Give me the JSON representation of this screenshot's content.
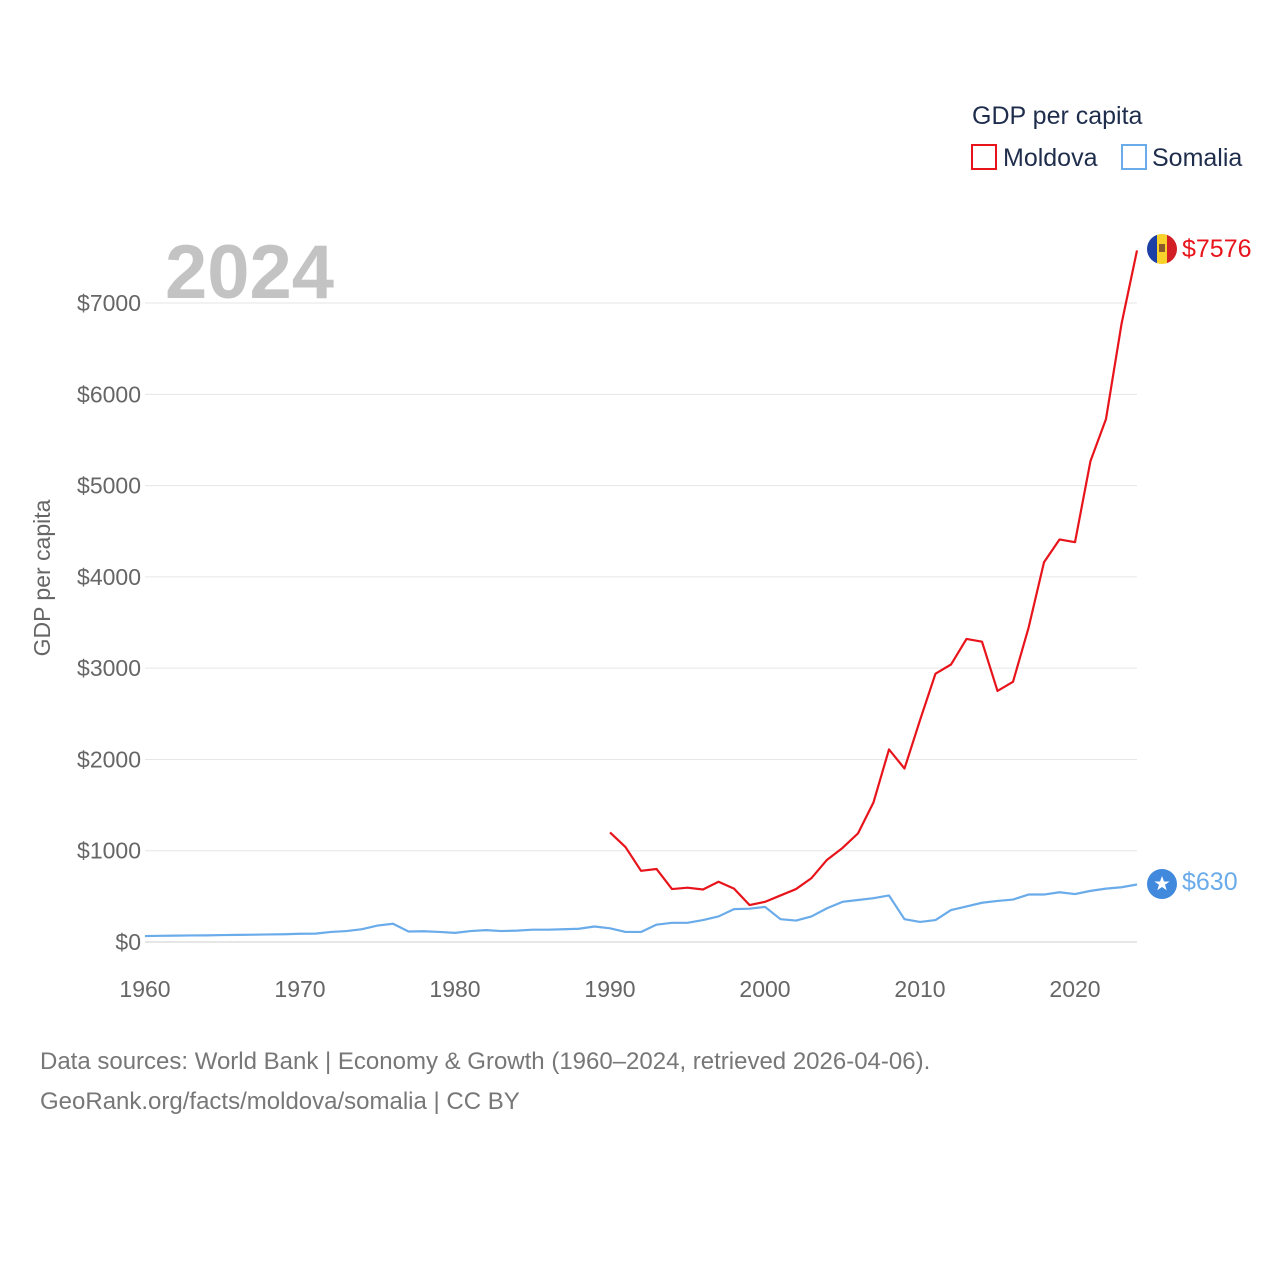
{
  "colors": {
    "moldova": "#e8141b",
    "somalia": "#6aabea",
    "flag_blue": "#1c3fa5",
    "flag_yellow": "#f8d22b",
    "flag_red": "#d21f26",
    "somalia_flag": "#4189dd"
  },
  "icons": {
    "moldova_flag": "moldova-flag-icon",
    "somalia_flag": "somalia-flag-icon"
  },
  "chart_data": {
    "type": "line",
    "title": "2024",
    "legend_title": "GDP per capita",
    "ylabel": "GDP per capita",
    "xlabel": "",
    "xlim": [
      1960,
      2024
    ],
    "ylim": [
      0,
      7700
    ],
    "x_ticks": [
      1960,
      1970,
      1980,
      1990,
      2000,
      2010,
      2020
    ],
    "x_tick_labels": [
      "1960",
      "1970",
      "1980",
      "1990",
      "2000",
      "2010",
      "2020"
    ],
    "y_ticks": [
      0,
      1000,
      2000,
      3000,
      4000,
      5000,
      6000,
      7000
    ],
    "y_tick_labels": [
      "$0",
      "$1000",
      "$2000",
      "$3000",
      "$4000",
      "$5000",
      "$6000",
      "$7000"
    ],
    "grid": true,
    "legend_position": "top-right",
    "series": [
      {
        "name": "Moldova",
        "color": "#e8141b",
        "end_label": "$7576",
        "points": [
          [
            1990,
            1200
          ],
          [
            1991,
            1040
          ],
          [
            1992,
            780
          ],
          [
            1993,
            800
          ],
          [
            1994,
            580
          ],
          [
            1995,
            595
          ],
          [
            1996,
            575
          ],
          [
            1997,
            660
          ],
          [
            1998,
            585
          ],
          [
            1999,
            405
          ],
          [
            2000,
            440
          ],
          [
            2001,
            510
          ],
          [
            2002,
            580
          ],
          [
            2003,
            700
          ],
          [
            2004,
            900
          ],
          [
            2005,
            1030
          ],
          [
            2006,
            1190
          ],
          [
            2007,
            1530
          ],
          [
            2008,
            2110
          ],
          [
            2009,
            1900
          ],
          [
            2010,
            2430
          ],
          [
            2011,
            2940
          ],
          [
            2012,
            3040
          ],
          [
            2013,
            3320
          ],
          [
            2014,
            3290
          ],
          [
            2015,
            2750
          ],
          [
            2016,
            2850
          ],
          [
            2017,
            3440
          ],
          [
            2018,
            4160
          ],
          [
            2019,
            4410
          ],
          [
            2020,
            4380
          ],
          [
            2021,
            5270
          ],
          [
            2022,
            5730
          ],
          [
            2023,
            6770
          ],
          [
            2024,
            7576
          ]
        ]
      },
      {
        "name": "Somalia",
        "color": "#6aabea",
        "end_label": "$630",
        "points": [
          [
            1960,
            65
          ],
          [
            1961,
            68
          ],
          [
            1962,
            70
          ],
          [
            1963,
            72
          ],
          [
            1964,
            73
          ],
          [
            1965,
            76
          ],
          [
            1966,
            78
          ],
          [
            1967,
            80
          ],
          [
            1968,
            83
          ],
          [
            1969,
            85
          ],
          [
            1970,
            90
          ],
          [
            1971,
            92
          ],
          [
            1972,
            110
          ],
          [
            1973,
            120
          ],
          [
            1974,
            140
          ],
          [
            1975,
            180
          ],
          [
            1976,
            200
          ],
          [
            1977,
            115
          ],
          [
            1978,
            118
          ],
          [
            1979,
            110
          ],
          [
            1980,
            100
          ],
          [
            1981,
            120
          ],
          [
            1982,
            130
          ],
          [
            1983,
            120
          ],
          [
            1984,
            125
          ],
          [
            1985,
            135
          ],
          [
            1986,
            135
          ],
          [
            1987,
            140
          ],
          [
            1988,
            145
          ],
          [
            1989,
            170
          ],
          [
            1990,
            150
          ],
          [
            1991,
            110
          ],
          [
            1992,
            110
          ],
          [
            1993,
            190
          ],
          [
            1994,
            210
          ],
          [
            1995,
            210
          ],
          [
            1996,
            240
          ],
          [
            1997,
            280
          ],
          [
            1998,
            360
          ],
          [
            1999,
            365
          ],
          [
            2000,
            385
          ],
          [
            2001,
            250
          ],
          [
            2002,
            235
          ],
          [
            2003,
            280
          ],
          [
            2004,
            370
          ],
          [
            2005,
            440
          ],
          [
            2006,
            460
          ],
          [
            2007,
            480
          ],
          [
            2008,
            510
          ],
          [
            2009,
            250
          ],
          [
            2010,
            220
          ],
          [
            2011,
            240
          ],
          [
            2012,
            350
          ],
          [
            2013,
            390
          ],
          [
            2014,
            430
          ],
          [
            2015,
            450
          ],
          [
            2016,
            465
          ],
          [
            2017,
            520
          ],
          [
            2018,
            520
          ],
          [
            2019,
            545
          ],
          [
            2020,
            525
          ],
          [
            2021,
            560
          ],
          [
            2022,
            585
          ],
          [
            2023,
            600
          ],
          [
            2024,
            630
          ]
        ]
      }
    ]
  },
  "footer": {
    "source_line_1": "Data sources: World Bank | Economy & Growth (1960–2024, retrieved 2026-04-06).",
    "source_line_2": "GeoRank.org/facts/moldova/somalia | CC BY"
  }
}
